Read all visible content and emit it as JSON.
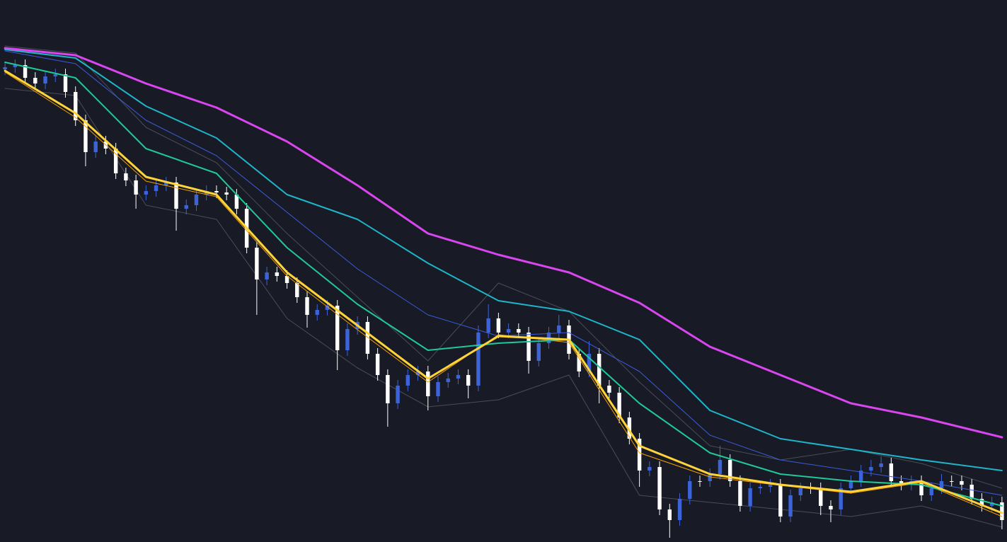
{
  "chart_data": {
    "type": "candlestick",
    "xlim": [
      -0.5,
      99.5
    ],
    "ylim": [
      0,
      766
    ],
    "up_color": "#3d63d8",
    "down_color": "#ffffff",
    "open": [
      668,
      671,
      674,
      656,
      648,
      658,
      661,
      636,
      596,
      551,
      566,
      556,
      521,
      511,
      491,
      496,
      504,
      508,
      471,
      476,
      491,
      496,
      494,
      491,
      471,
      416,
      371,
      381,
      376,
      366,
      346,
      321,
      328,
      334,
      271,
      301,
      311,
      266,
      236,
      196,
      221,
      236,
      241,
      206,
      226,
      231,
      236,
      221,
      296,
      316,
      296,
      301,
      296,
      256,
      281,
      296,
      306,
      266,
      241,
      266,
      221,
      211,
      176,
      146,
      101,
      106,
      46,
      31,
      61,
      86,
      86,
      96,
      116,
      86,
      51,
      76,
      78,
      81,
      36,
      66,
      76,
      76,
      51,
      46,
      76,
      86,
      101,
      106,
      111,
      86,
      81,
      86,
      66,
      76,
      86,
      86,
      81,
      61,
      51,
      56
    ],
    "high": [
      679,
      682,
      682,
      664,
      666,
      669,
      669,
      644,
      604,
      574,
      574,
      564,
      529,
      519,
      504,
      512,
      516,
      516,
      484,
      499,
      504,
      504,
      502,
      499,
      479,
      424,
      389,
      389,
      384,
      374,
      354,
      336,
      342,
      342,
      309,
      319,
      319,
      274,
      244,
      229,
      244,
      249,
      249,
      234,
      239,
      244,
      244,
      306,
      336,
      324,
      309,
      309,
      304,
      289,
      304,
      321,
      314,
      274,
      284,
      274,
      229,
      219,
      184,
      154,
      114,
      114,
      54,
      69,
      94,
      94,
      104,
      136,
      124,
      94,
      84,
      86,
      89,
      89,
      74,
      84,
      84,
      84,
      59,
      84,
      94,
      109,
      116,
      121,
      119,
      94,
      94,
      94,
      84,
      96,
      94,
      94,
      89,
      69,
      64,
      64
    ],
    "low": [
      660,
      663,
      648,
      640,
      640,
      650,
      628,
      588,
      531,
      543,
      548,
      513,
      503,
      471,
      483,
      488,
      496,
      440,
      463,
      468,
      483,
      486,
      483,
      463,
      408,
      321,
      363,
      368,
      358,
      338,
      303,
      313,
      320,
      243,
      263,
      293,
      258,
      228,
      163,
      188,
      213,
      228,
      186,
      198,
      218,
      223,
      203,
      213,
      288,
      288,
      288,
      288,
      238,
      248,
      273,
      288,
      258,
      233,
      233,
      196,
      203,
      168,
      138,
      78,
      93,
      38,
      6,
      23,
      53,
      78,
      78,
      88,
      78,
      43,
      43,
      68,
      70,
      28,
      28,
      58,
      68,
      38,
      28,
      38,
      68,
      78,
      93,
      98,
      78,
      73,
      73,
      58,
      58,
      68,
      78,
      73,
      53,
      43,
      43,
      18
    ],
    "close": [
      671,
      674,
      656,
      648,
      658,
      661,
      636,
      596,
      551,
      566,
      556,
      521,
      511,
      491,
      496,
      504,
      508,
      471,
      476,
      491,
      496,
      494,
      491,
      471,
      416,
      371,
      381,
      376,
      366,
      346,
      321,
      328,
      334,
      271,
      301,
      311,
      266,
      236,
      196,
      221,
      236,
      241,
      206,
      226,
      231,
      236,
      221,
      296,
      316,
      296,
      301,
      296,
      256,
      281,
      296,
      306,
      266,
      241,
      266,
      221,
      211,
      176,
      146,
      101,
      106,
      46,
      31,
      61,
      86,
      86,
      96,
      116,
      86,
      51,
      76,
      78,
      81,
      36,
      66,
      76,
      76,
      51,
      46,
      76,
      86,
      101,
      106,
      111,
      86,
      81,
      86,
      66,
      76,
      86,
      86,
      81,
      61,
      51,
      56,
      31
    ],
    "series": [
      {
        "color": "#4a4d57",
        "x": [
          0,
          7,
          14,
          21,
          28,
          35,
          42,
          49,
          56,
          63,
          70,
          77,
          84,
          91,
          99
        ],
        "values": [
          701,
          691,
          586,
          536,
          436,
          346,
          256,
          366,
          326,
          226,
          136,
          116,
          131,
          111,
          76
        ]
      },
      {
        "color": "#4a4d57",
        "x": [
          0,
          7,
          14,
          21,
          28,
          35,
          42,
          49,
          56,
          63,
          70,
          77,
          84,
          91,
          99
        ],
        "values": [
          641,
          631,
          476,
          456,
          316,
          246,
          191,
          201,
          236,
          66,
          56,
          46,
          36,
          51,
          21
        ]
      },
      {
        "color": "#3b5bdb",
        "x": [
          0,
          7,
          14,
          21,
          28,
          35,
          42,
          49,
          56,
          63,
          70,
          77,
          84,
          91,
          99
        ],
        "values": [
          694,
          676,
          596,
          546,
          466,
          386,
          321,
          291,
          296,
          241,
          151,
          116,
          101,
          86,
          66
        ]
      },
      {
        "color": "#f59f00",
        "x": [
          0,
          7,
          14,
          21,
          28,
          35,
          42,
          49,
          56,
          63,
          70,
          77,
          84,
          91,
          99
        ],
        "values": [
          664,
          600,
          510,
          488,
          376,
          300,
          226,
          293,
          282,
          126,
          92,
          80,
          69,
          84,
          36
        ]
      },
      {
        "color": "#20c997",
        "x": [
          0,
          7,
          14,
          21,
          28,
          35,
          42,
          49,
          56,
          63,
          70,
          77,
          84,
          91,
          99
        ],
        "values": [
          678,
          656,
          556,
          521,
          416,
          336,
          271,
          281,
          286,
          196,
          126,
          96,
          86,
          81,
          51
        ]
      },
      {
        "color": "#1fb5c9",
        "x": [
          0,
          7,
          14,
          21,
          28,
          35,
          42,
          49,
          56,
          63,
          70,
          77,
          84,
          91,
          99
        ],
        "values": [
          696,
          684,
          616,
          571,
          491,
          456,
          394,
          341,
          326,
          286,
          186,
          146,
          131,
          116,
          101
        ]
      },
      {
        "color": "#ffd43b",
        "x": [
          0,
          7,
          14,
          21,
          28,
          35,
          42,
          49,
          56,
          63,
          70,
          77,
          84,
          91,
          99
        ],
        "values": [
          666,
          606,
          516,
          491,
          381,
          306,
          231,
          291,
          286,
          136,
          96,
          81,
          71,
          86,
          41
        ]
      },
      {
        "color": "#d946ef",
        "x": [
          0,
          7,
          14,
          21,
          28,
          35,
          42,
          49,
          56,
          63,
          70,
          77,
          84,
          91,
          99
        ],
        "values": [
          698,
          688,
          648,
          614,
          566,
          504,
          436,
          406,
          381,
          338,
          276,
          236,
          196,
          176,
          148
        ]
      }
    ]
  }
}
